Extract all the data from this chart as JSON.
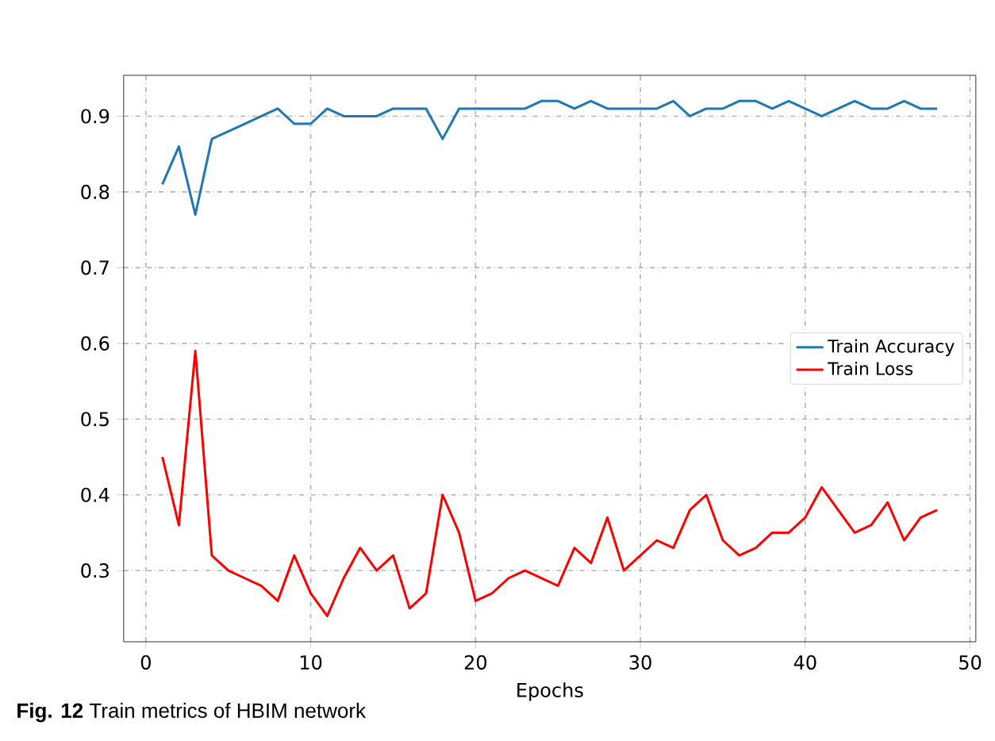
{
  "chart_data": {
    "type": "line",
    "xlabel": "Epochs",
    "annotations": [
      "**Fig. 12** Train metrics of HBIM network"
    ],
    "x": [
      1,
      2,
      3,
      4,
      5,
      6,
      7,
      8,
      9,
      10,
      11,
      12,
      13,
      14,
      15,
      16,
      17,
      18,
      19,
      20,
      21,
      22,
      23,
      24,
      25,
      26,
      27,
      28,
      29,
      30,
      31,
      32,
      33,
      34,
      35,
      36,
      37,
      38,
      39,
      40,
      41,
      42,
      43,
      44,
      45,
      46,
      47,
      48
    ],
    "series": [
      {
        "name": "Train Accuracy",
        "color": "#1f77b4",
        "values": [
          0.81,
          0.86,
          0.77,
          0.87,
          0.88,
          0.89,
          0.9,
          0.91,
          0.89,
          0.89,
          0.91,
          0.9,
          0.9,
          0.9,
          0.91,
          0.91,
          0.91,
          0.87,
          0.91,
          0.91,
          0.91,
          0.91,
          0.91,
          0.92,
          0.92,
          0.91,
          0.92,
          0.91,
          0.91,
          0.91,
          0.91,
          0.92,
          0.9,
          0.91,
          0.91,
          0.92,
          0.92,
          0.91,
          0.92,
          0.91,
          0.9,
          0.91,
          0.92,
          0.91,
          0.91,
          0.92,
          0.91,
          0.91
        ]
      },
      {
        "name": "Train Loss",
        "color": "#ff0000",
        "values": [
          0.45,
          0.36,
          0.59,
          0.32,
          0.3,
          0.29,
          0.28,
          0.26,
          0.32,
          0.27,
          0.24,
          0.29,
          0.33,
          0.3,
          0.32,
          0.25,
          0.27,
          0.4,
          0.35,
          0.26,
          0.27,
          0.29,
          0.3,
          0.29,
          0.28,
          0.33,
          0.31,
          0.37,
          0.3,
          0.32,
          0.34,
          0.33,
          0.38,
          0.4,
          0.34,
          0.32,
          0.33,
          0.35,
          0.35,
          0.37,
          0.41,
          0.38,
          0.35,
          0.36,
          0.39,
          0.34,
          0.37,
          0.38
        ]
      }
    ],
    "xlim": [
      -1.35,
      50.35
    ],
    "xticks": [
      0,
      10,
      20,
      30,
      40,
      50
    ],
    "ylim": [
      0.206,
      0.954
    ],
    "yticks": [
      0.3,
      0.4,
      0.5,
      0.6,
      0.7,
      0.8,
      0.9
    ],
    "grid": true,
    "legend": "right",
    "marker": "none",
    "line_style": "solid"
  }
}
